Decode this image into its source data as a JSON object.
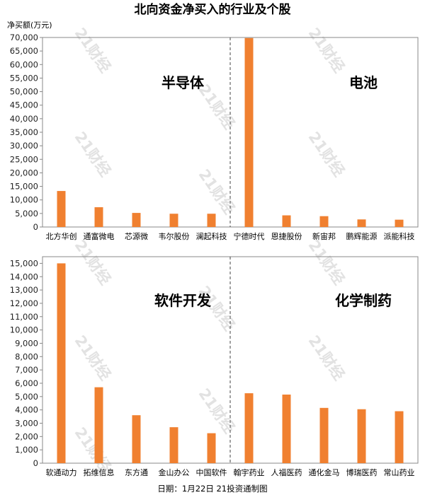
{
  "page": {
    "title": "北向资金净买入的行业及个股",
    "footer": "日期：1月22日 21投资通制图",
    "watermark": "21财经"
  },
  "colors": {
    "bar": "#f08030",
    "axis": "#888888",
    "divider": "#444444",
    "grid_text": "#222222"
  },
  "chart_data": [
    {
      "type": "bar",
      "ylabel": "净买额(万元)",
      "ylim": [
        0,
        70000
      ],
      "yticks": [
        0,
        5000,
        10000,
        15000,
        20000,
        25000,
        30000,
        35000,
        40000,
        45000,
        50000,
        55000,
        60000,
        65000,
        70000
      ],
      "ytick_labels": [
        "0",
        "5,000",
        "10,000",
        "15,000",
        "20,000",
        "25,000",
        "30,000",
        "35,000",
        "40,000",
        "45,000",
        "50,000",
        "55,000",
        "60,000",
        "65,000",
        "70,000"
      ],
      "groups": [
        {
          "label": "半导体",
          "categories": [
            "北方华创",
            "通富微电",
            "芯源微",
            "韦尔股份",
            "澜起科技"
          ],
          "values": [
            13300,
            7300,
            5200,
            4900,
            4900
          ]
        },
        {
          "label": "电池",
          "categories": [
            "宁德时代",
            "恩捷股份",
            "新宙邦",
            "鹏辉能源",
            "派能科技"
          ],
          "values": [
            69800,
            4300,
            4000,
            2800,
            2700
          ]
        }
      ],
      "grid": false,
      "legend": "none"
    },
    {
      "type": "bar",
      "ylim": [
        0,
        15500
      ],
      "yticks": [
        0,
        1000,
        2000,
        3000,
        4000,
        5000,
        6000,
        7000,
        8000,
        9000,
        10000,
        11000,
        12000,
        13000,
        14000,
        15000
      ],
      "ytick_labels": [
        "0",
        "1,000",
        "2,000",
        "3,000",
        "4,000",
        "5,000",
        "6,000",
        "7,000",
        "8,000",
        "9,000",
        "10,000",
        "11,000",
        "12,000",
        "13,000",
        "14,000",
        "15,000"
      ],
      "groups": [
        {
          "label": "软件开发",
          "categories": [
            "软通动力",
            "拓维信息",
            "东方通",
            "金山办公",
            "中国软件"
          ],
          "values": [
            15000,
            5700,
            3600,
            2700,
            2250
          ]
        },
        {
          "label": "化学制药",
          "categories": [
            "翰宇药业",
            "人福医药",
            "通化金马",
            "博瑞医药",
            "常山药业"
          ],
          "values": [
            5250,
            5150,
            4150,
            4050,
            3900
          ]
        }
      ],
      "grid": false,
      "legend": "none"
    }
  ]
}
